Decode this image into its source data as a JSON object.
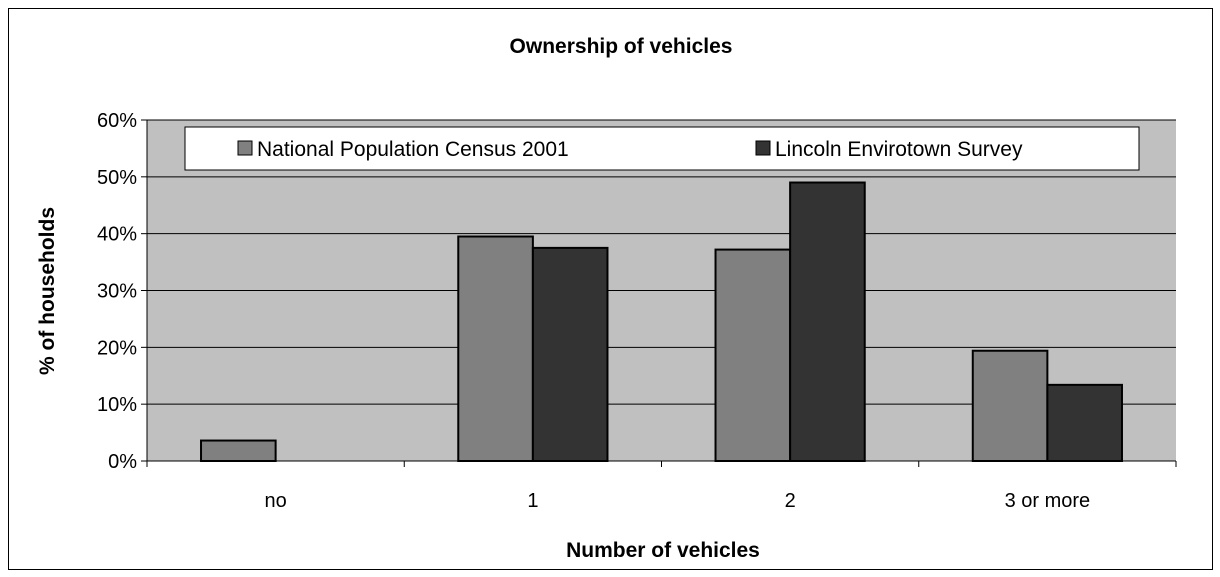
{
  "chart_data": {
    "type": "bar",
    "title": "Ownership of vehicles",
    "xlabel": "Number of vehicles",
    "ylabel": "% of households",
    "categories": [
      "no",
      "1",
      "2",
      "3 or more"
    ],
    "series": [
      {
        "name": "National Population Census 2001",
        "values": [
          3.6,
          39.5,
          37.2,
          19.4
        ],
        "color": "#808080"
      },
      {
        "name": "Lincoln Envirotown Survey",
        "values": [
          0,
          37.5,
          49.0,
          13.4
        ],
        "color": "#333333"
      }
    ],
    "ylim": [
      0,
      60
    ],
    "yticks": [
      "0%",
      "10%",
      "20%",
      "30%",
      "40%",
      "50%",
      "60%"
    ],
    "grid": true,
    "legend_position": "top",
    "plot_background": "#c0c0c0"
  }
}
